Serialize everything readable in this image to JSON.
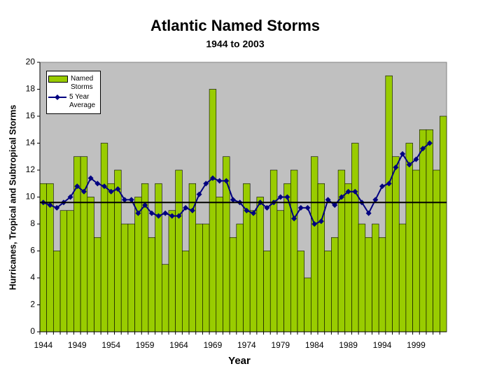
{
  "chart_data": {
    "type": "bar_line",
    "title": "Atlantic Named Storms",
    "subtitle": "1944 to 2003",
    "x_label": "Year",
    "y_label": "Hurricanes, Tropical and Subtropical Storms",
    "categories": [
      "1944",
      null,
      null,
      null,
      null,
      "1949",
      null,
      null,
      null,
      null,
      "1954",
      null,
      null,
      null,
      null,
      "1959",
      null,
      null,
      null,
      null,
      "1964",
      null,
      null,
      null,
      null,
      "1969",
      null,
      null,
      null,
      null,
      "1974",
      null,
      null,
      null,
      null,
      "1979",
      null,
      null,
      null,
      null,
      "1984",
      null,
      null,
      null,
      null,
      "1989",
      null,
      null,
      null,
      null,
      "1994",
      null,
      null,
      null,
      null,
      "1999",
      null,
      null,
      null,
      null
    ],
    "series": [
      {
        "name": "Named Storms",
        "type": "bar",
        "color": "#99cc00",
        "values": [
          11,
          11,
          6,
          9,
          9,
          13,
          13,
          10,
          7,
          14,
          11,
          12,
          8,
          8,
          10,
          11,
          7,
          11,
          5,
          9,
          12,
          6,
          11,
          8,
          8,
          18,
          10,
          13,
          7,
          8,
          11,
          9,
          10,
          6,
          12,
          9,
          11,
          12,
          6,
          4,
          13,
          11,
          6,
          7,
          12,
          11,
          14,
          8,
          7,
          8,
          7,
          19,
          13,
          8,
          14,
          12,
          15,
          15,
          12,
          16
        ]
      },
      {
        "name": "5 Year Average",
        "type": "line",
        "color": "#000080",
        "values": [
          9.6,
          9.4,
          9.2,
          9.6,
          10.0,
          10.8,
          10.4,
          11.4,
          11.0,
          10.8,
          10.4,
          10.6,
          9.8,
          9.8,
          8.8,
          9.4,
          8.8,
          8.6,
          8.8,
          8.6,
          8.6,
          9.2,
          9.0,
          10.2,
          11.0,
          11.4,
          11.2,
          11.2,
          9.8,
          9.6,
          9.0,
          8.8,
          9.6,
          9.2,
          9.6,
          10.0,
          10.0,
          8.4,
          9.2,
          9.2,
          8.0,
          8.2,
          9.8,
          9.4,
          10.0,
          10.4,
          10.4,
          9.6,
          8.8,
          9.8,
          10.8,
          11.0,
          12.2,
          13.2,
          12.4,
          12.8,
          13.6,
          14.0,
          null,
          null
        ]
      }
    ],
    "reference_line": 9.6,
    "reference_color": "#000000",
    "ylim": [
      0,
      20
    ],
    "yticks": [
      0,
      2,
      4,
      6,
      8,
      10,
      12,
      14,
      16,
      18,
      20
    ],
    "legend": "upper left",
    "background": "#c0c0c0"
  }
}
